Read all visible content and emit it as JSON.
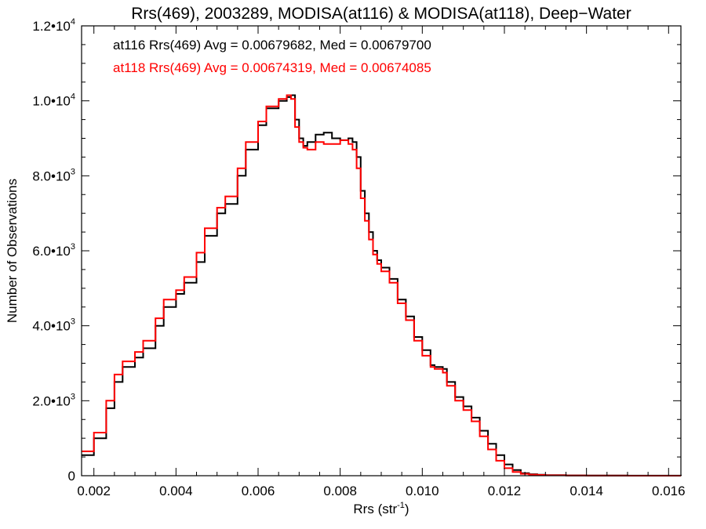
{
  "chart_data": {
    "type": "line",
    "title": "Rrs(469), 2003289, MODISA(at116) & MODISA(at118), Deep−Water",
    "xlabel": "Rrs (str",
    "xlabel_sup": "-1",
    "xlabel_suffix": ")",
    "ylabel": "Number of Observations",
    "xlim": [
      0.0017,
      0.0163
    ],
    "ylim": [
      0,
      12000
    ],
    "grid": false,
    "step": true,
    "x_ticks": [
      {
        "value": 0.002,
        "label": "0.002"
      },
      {
        "value": 0.004,
        "label": "0.004"
      },
      {
        "value": 0.006,
        "label": "0.006"
      },
      {
        "value": 0.008,
        "label": "0.008"
      },
      {
        "value": 0.01,
        "label": "0.010"
      },
      {
        "value": 0.012,
        "label": "0.012"
      },
      {
        "value": 0.014,
        "label": "0.014"
      },
      {
        "value": 0.016,
        "label": "0.016"
      }
    ],
    "y_ticks": [
      {
        "value": 0,
        "mant": "0",
        "exp": ""
      },
      {
        "value": 2000,
        "mant": "2.0•10",
        "exp": "3"
      },
      {
        "value": 4000,
        "mant": "4.0•10",
        "exp": "3"
      },
      {
        "value": 6000,
        "mant": "6.0•10",
        "exp": "3"
      },
      {
        "value": 8000,
        "mant": "8.0•10",
        "exp": "3"
      },
      {
        "value": 10000,
        "mant": "1.0•10",
        "exp": "4"
      },
      {
        "value": 12000,
        "mant": "1.2•10",
        "exp": "4"
      }
    ],
    "annotations": [
      "at116 Rrs(469) Avg = 0.00679682, Med = 0.00679700",
      "at118 Rrs(469) Avg = 0.00674319, Med = 0.00674085"
    ],
    "series": [
      {
        "name": "at116",
        "color": "#000000",
        "x": [
          0.0017,
          0.002,
          0.0023,
          0.0025,
          0.0027,
          0.003,
          0.0032,
          0.0035,
          0.0037,
          0.004,
          0.0042,
          0.0045,
          0.0047,
          0.005,
          0.0052,
          0.0055,
          0.0057,
          0.006,
          0.0062,
          0.0065,
          0.0067,
          0.0068,
          0.0069,
          0.007,
          0.0071,
          0.0072,
          0.0074,
          0.0076,
          0.0078,
          0.008,
          0.0082,
          0.0083,
          0.0084,
          0.0085,
          0.0086,
          0.0087,
          0.0088,
          0.0089,
          0.009,
          0.0092,
          0.0094,
          0.0096,
          0.0098,
          0.01,
          0.0102,
          0.0103,
          0.0104,
          0.0105,
          0.0106,
          0.0108,
          0.011,
          0.0112,
          0.0114,
          0.0116,
          0.0118,
          0.012,
          0.0122,
          0.0124,
          0.0126,
          0.0128,
          0.013,
          0.0135,
          0.014,
          0.015,
          0.0163
        ],
        "values": [
          550,
          1000,
          1800,
          2500,
          2900,
          3150,
          3400,
          4000,
          4500,
          4850,
          5150,
          5700,
          6400,
          7000,
          7250,
          8000,
          8700,
          9350,
          9800,
          10000,
          10100,
          10150,
          9500,
          9000,
          8800,
          8900,
          9100,
          9150,
          9000,
          8950,
          9000,
          8900,
          8500,
          7600,
          7000,
          6500,
          6000,
          5750,
          5550,
          5250,
          4700,
          4250,
          3700,
          3350,
          2950,
          2900,
          2900,
          2850,
          2500,
          2100,
          1850,
          1550,
          1200,
          850,
          550,
          300,
          150,
          70,
          40,
          25,
          15,
          8,
          4,
          2,
          1
        ]
      },
      {
        "name": "at118",
        "color": "#ff0000",
        "x": [
          0.0017,
          0.002,
          0.0023,
          0.0025,
          0.0027,
          0.003,
          0.0032,
          0.0035,
          0.0037,
          0.004,
          0.0042,
          0.0045,
          0.0047,
          0.005,
          0.0052,
          0.0055,
          0.0057,
          0.006,
          0.0062,
          0.0065,
          0.0067,
          0.0068,
          0.0069,
          0.007,
          0.0071,
          0.0072,
          0.0074,
          0.0076,
          0.0078,
          0.008,
          0.0082,
          0.0083,
          0.0084,
          0.0085,
          0.0086,
          0.0087,
          0.0088,
          0.0089,
          0.009,
          0.0092,
          0.0094,
          0.0096,
          0.0098,
          0.01,
          0.0102,
          0.0103,
          0.0104,
          0.0105,
          0.0106,
          0.0108,
          0.011,
          0.0112,
          0.0114,
          0.0116,
          0.0118,
          0.012,
          0.0122,
          0.0124,
          0.0126,
          0.0128,
          0.013,
          0.0135,
          0.014,
          0.015,
          0.0163
        ],
        "values": [
          650,
          1150,
          2000,
          2700,
          3050,
          3300,
          3600,
          4200,
          4700,
          4950,
          5300,
          5950,
          6600,
          7150,
          7450,
          8200,
          8900,
          9450,
          9850,
          10050,
          10150,
          10050,
          9300,
          8900,
          8750,
          8700,
          8900,
          8850,
          8850,
          8950,
          8850,
          8700,
          8200,
          7400,
          6800,
          6300,
          5900,
          5650,
          5450,
          5150,
          4600,
          4150,
          3600,
          3200,
          2900,
          2850,
          2850,
          2750,
          2400,
          2000,
          1750,
          1450,
          1050,
          700,
          400,
          200,
          100,
          50,
          30,
          20,
          10,
          5,
          3,
          1,
          1
        ]
      }
    ]
  }
}
